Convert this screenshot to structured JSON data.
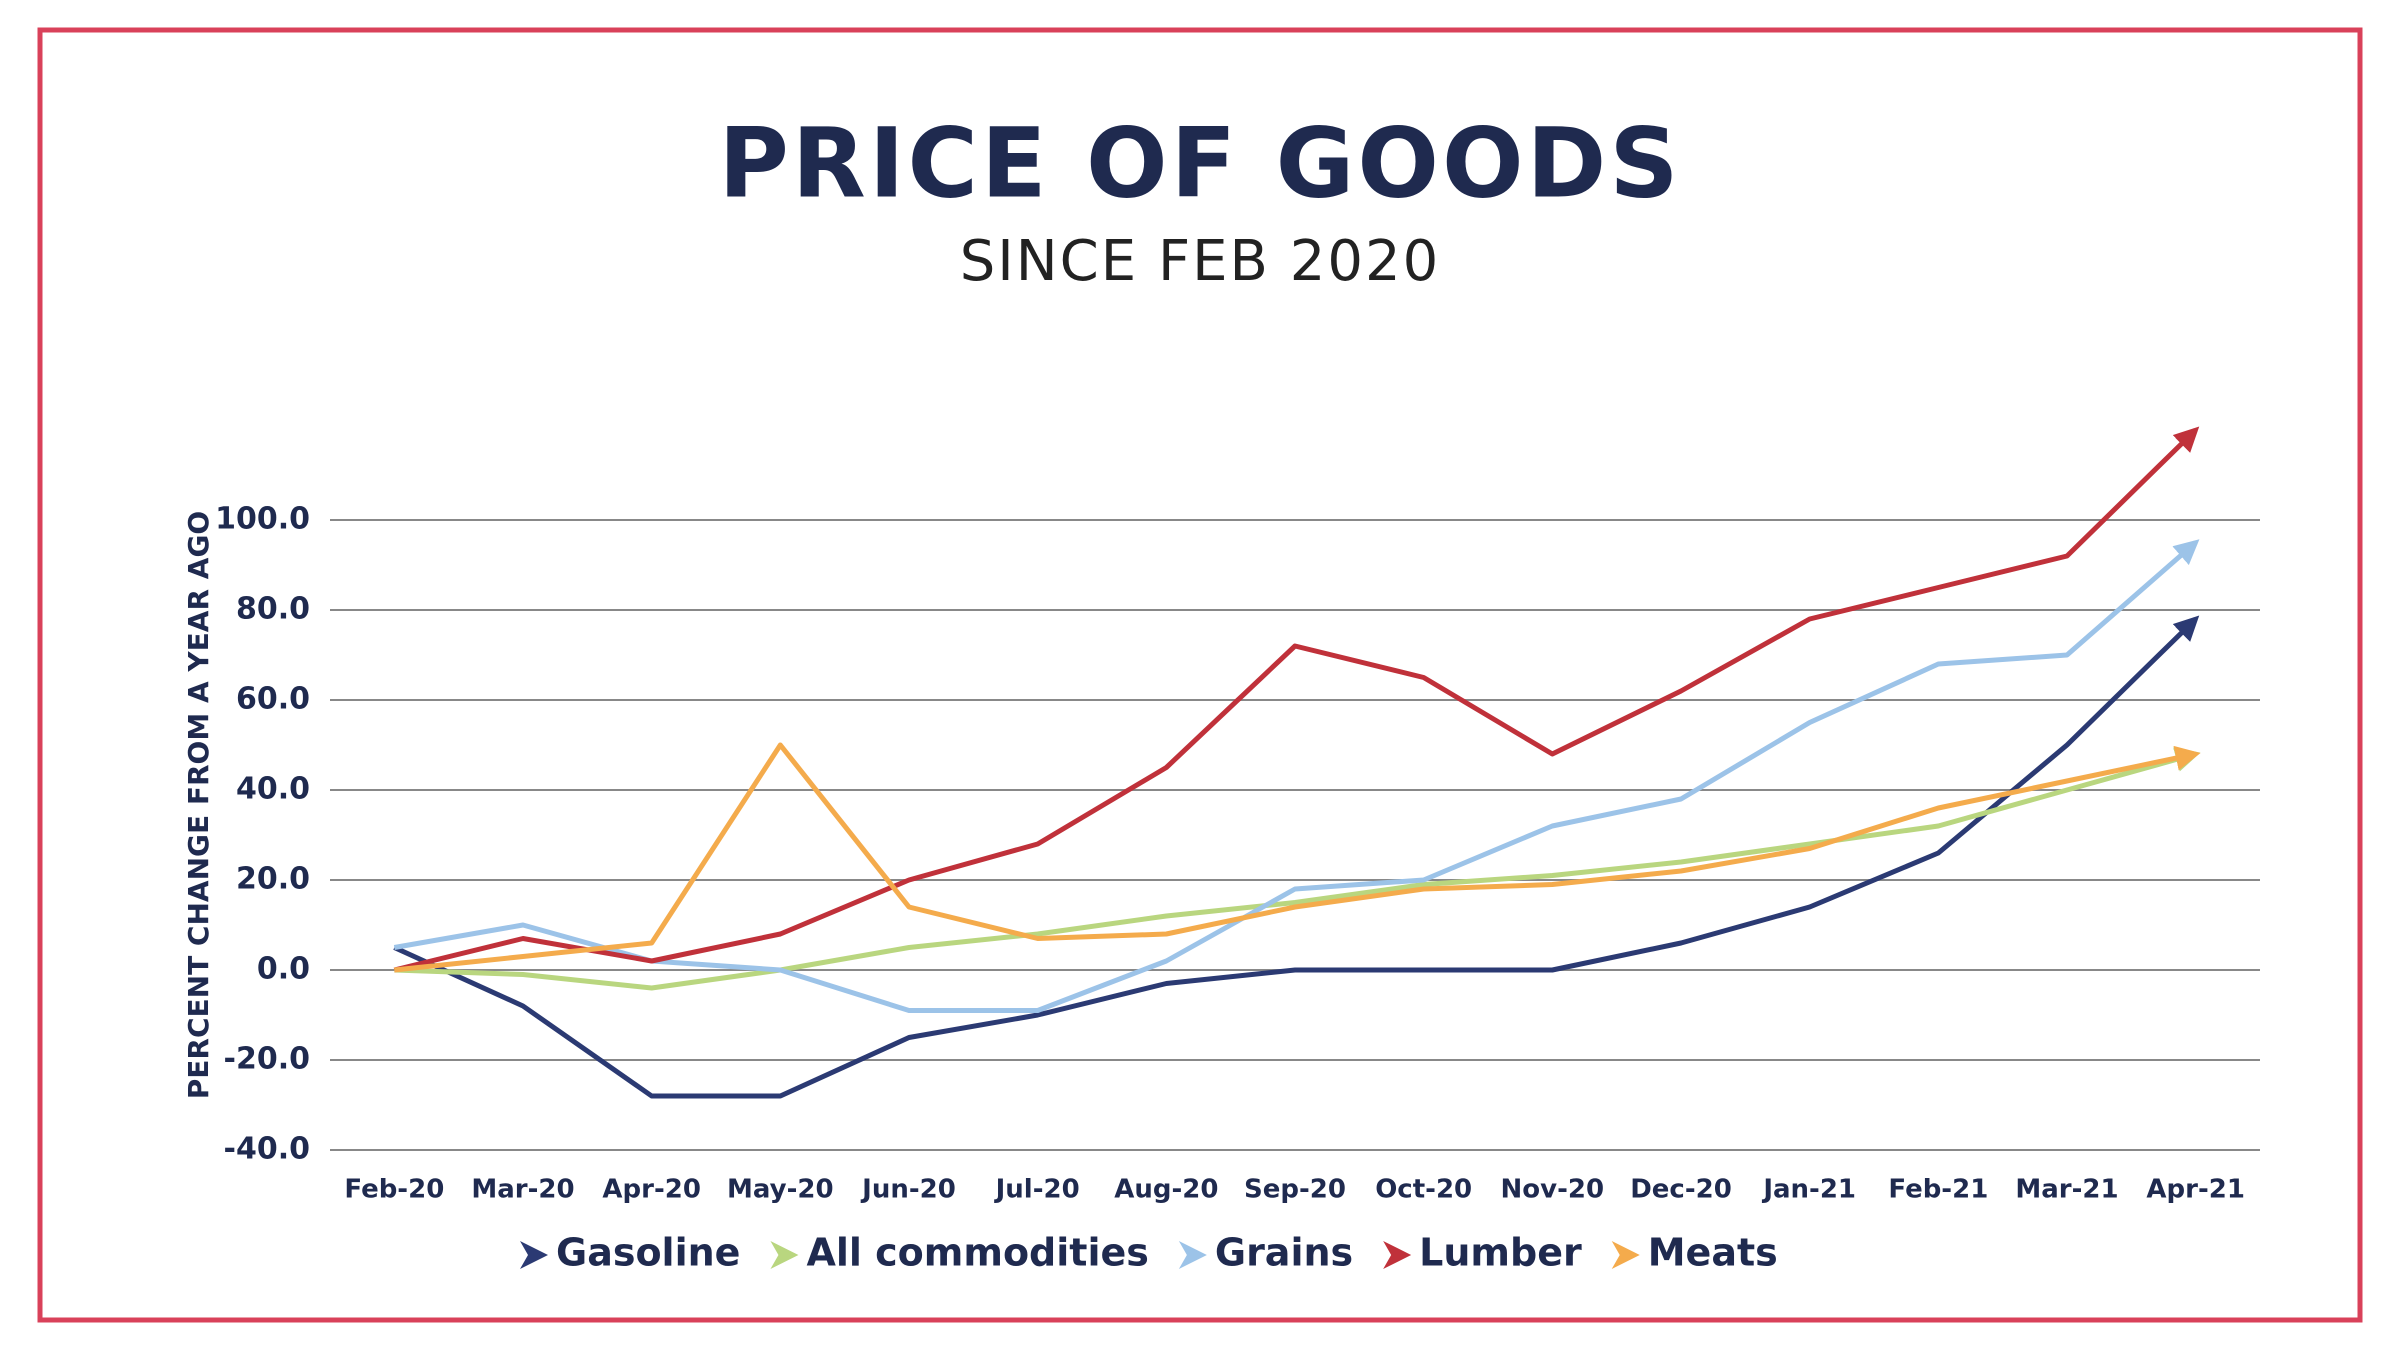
{
  "chart_data": {
    "type": "line",
    "title": "PRICE OF GOODS",
    "subtitle": "SINCE FEB 2020",
    "y_label": "PERCENT CHANGE FROM A YEAR AGO",
    "categories": [
      "Feb-20",
      "Mar-20",
      "Apr-20",
      "May-20",
      "Jun-20",
      "Jul-20",
      "Aug-20",
      "Sep-20",
      "Oct-20",
      "Nov-20",
      "Dec-20",
      "Jan-21",
      "Feb-21",
      "Mar-21",
      "Apr-21"
    ],
    "ylim": [
      -40,
      140
    ],
    "yticks": [
      {
        "value": -40,
        "label": "-40.0"
      },
      {
        "value": -20,
        "label": "-20.0"
      },
      {
        "value": 0,
        "label": "0.0"
      },
      {
        "value": 20,
        "label": "20.0"
      },
      {
        "value": 40,
        "label": "40.0"
      },
      {
        "value": 60,
        "label": "60.0"
      },
      {
        "value": 80,
        "label": "80.0"
      },
      {
        "value": 100,
        "label": "100.0"
      }
    ],
    "grid": true,
    "series": [
      {
        "name": "Gasoline",
        "color": "#2b3a73",
        "values": [
          5,
          -8,
          -28,
          -28,
          -15,
          -10,
          -3,
          0,
          0,
          0,
          6,
          14,
          26,
          50,
          78
        ]
      },
      {
        "name": "All commodities",
        "color": "#b9d67f",
        "values": [
          0,
          -1,
          -4,
          0,
          5,
          8,
          12,
          15,
          19,
          21,
          24,
          28,
          32,
          40,
          48
        ]
      },
      {
        "name": "Grains",
        "color": "#9cc3e8",
        "values": [
          5,
          10,
          2,
          0,
          -9,
          -9,
          2,
          18,
          20,
          32,
          38,
          55,
          68,
          70,
          95
        ]
      },
      {
        "name": "Lumber",
        "color": "#c0313a",
        "values": [
          0,
          7,
          2,
          8,
          20,
          28,
          45,
          72,
          65,
          48,
          62,
          78,
          85,
          92,
          120
        ]
      },
      {
        "name": "Meats",
        "color": "#f4ab4c",
        "values": [
          0,
          3,
          6,
          50,
          14,
          7,
          8,
          14,
          18,
          19,
          22,
          27,
          36,
          42,
          48
        ]
      }
    ]
  }
}
